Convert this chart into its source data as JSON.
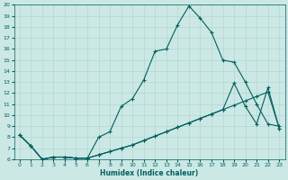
{
  "xlabel": "Humidex (Indice chaleur)",
  "bg_color": "#cce8e4",
  "grid_color": "#b0d8d2",
  "line_color": "#006060",
  "xlim": [
    -0.5,
    23.5
  ],
  "ylim": [
    6,
    20
  ],
  "xticks": [
    0,
    1,
    2,
    3,
    4,
    5,
    6,
    7,
    8,
    9,
    10,
    11,
    12,
    13,
    14,
    15,
    16,
    17,
    18,
    19,
    20,
    21,
    22,
    23
  ],
  "yticks": [
    6,
    7,
    8,
    9,
    10,
    11,
    12,
    13,
    14,
    15,
    16,
    17,
    18,
    19,
    20
  ],
  "line1_x": [
    0,
    1,
    2,
    3,
    4,
    5,
    6,
    7,
    8,
    9,
    10,
    11,
    12,
    13,
    14,
    15,
    16,
    17,
    18,
    19,
    20,
    21,
    22,
    23
  ],
  "line1_y": [
    8.2,
    7.2,
    6.0,
    6.2,
    6.2,
    6.1,
    6.1,
    8.0,
    8.5,
    10.8,
    11.5,
    13.2,
    15.8,
    16.0,
    18.2,
    19.9,
    18.8,
    17.5,
    15.0,
    14.8,
    13.0,
    11.0,
    9.2,
    9.0
  ],
  "line2_x": [
    0,
    1,
    2,
    3,
    4,
    5,
    6,
    7,
    8,
    9,
    10,
    11,
    12,
    13,
    14,
    15,
    16,
    17,
    18,
    19,
    20,
    21,
    22,
    23
  ],
  "line2_y": [
    8.2,
    7.2,
    6.0,
    6.2,
    6.2,
    6.1,
    6.1,
    6.4,
    6.7,
    7.0,
    7.3,
    7.7,
    8.1,
    8.5,
    8.9,
    9.3,
    9.7,
    10.1,
    10.5,
    12.9,
    10.8,
    9.2,
    12.5,
    8.8
  ],
  "line3_x": [
    0,
    1,
    2,
    3,
    4,
    5,
    6,
    7,
    8,
    9,
    10,
    11,
    12,
    13,
    14,
    15,
    16,
    17,
    18,
    19,
    20,
    21,
    22,
    23
  ],
  "line3_y": [
    8.2,
    7.2,
    6.0,
    6.2,
    6.2,
    6.1,
    6.1,
    6.4,
    6.7,
    7.0,
    7.3,
    7.7,
    8.1,
    8.5,
    8.9,
    9.3,
    9.7,
    10.1,
    10.5,
    10.9,
    11.3,
    11.7,
    12.1,
    8.8
  ]
}
